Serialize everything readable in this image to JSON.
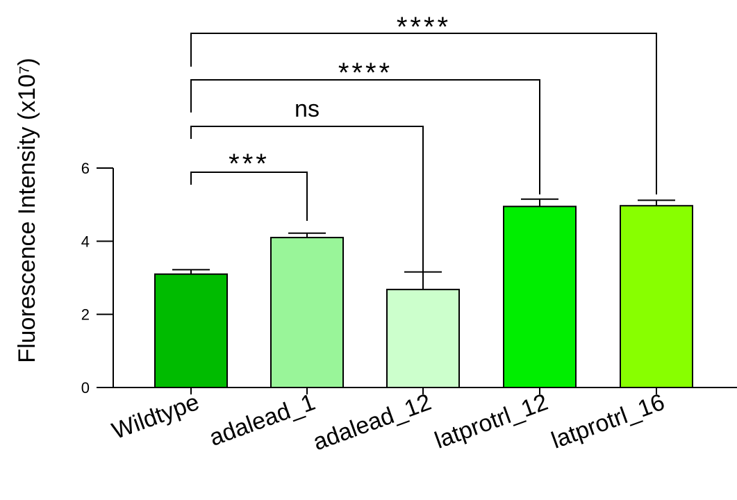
{
  "chart_data": {
    "type": "bar",
    "ylabel": "Fluorescence Intensity (x10⁷)",
    "ylim": [
      0,
      6
    ],
    "yticks": [
      "0",
      "2",
      "4",
      "6"
    ],
    "grid": false,
    "categories": [
      "Wildtype",
      "adalead_1",
      "adalead_12",
      "latprotrl_12",
      "latprotrl_16"
    ],
    "values": [
      3.1,
      4.1,
      2.68,
      4.95,
      4.97
    ],
    "errors": [
      0.12,
      0.12,
      0.48,
      0.2,
      0.15
    ],
    "colors": [
      "#00BB00",
      "#99F599",
      "#CCFFCC",
      "#00EE00",
      "#88FF00"
    ],
    "significance": [
      {
        "from": "Wildtype",
        "to": "adalead_1",
        "label": "***"
      },
      {
        "from": "Wildtype",
        "to": "adalead_12",
        "label": "ns"
      },
      {
        "from": "Wildtype",
        "to": "latprotrl_12",
        "label": "****"
      },
      {
        "from": "Wildtype",
        "to": "latprotrl_16",
        "label": "****"
      }
    ]
  }
}
